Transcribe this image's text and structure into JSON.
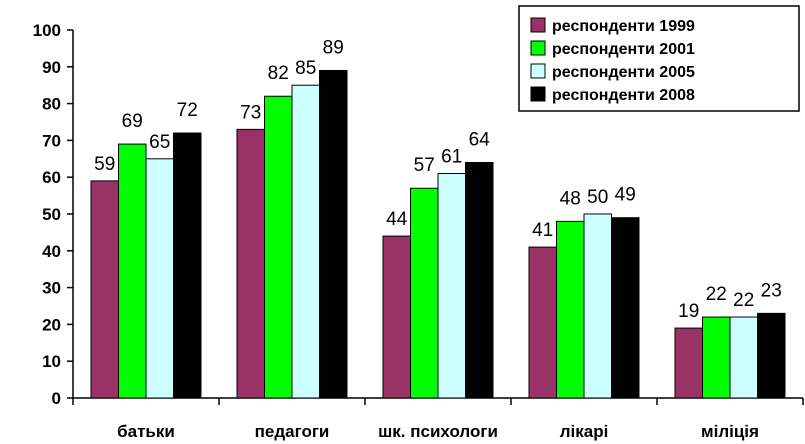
{
  "chart_data": {
    "type": "bar",
    "categories": [
      "батьки",
      "педагоги",
      "шк. психологи",
      "лікарі",
      "міліція"
    ],
    "series": [
      {
        "name": "респонденти 1999",
        "color": "#993366",
        "values": [
          59,
          73,
          44,
          41,
          19
        ]
      },
      {
        "name": "респонденти 2001",
        "color": "#00ff00",
        "values": [
          69,
          82,
          57,
          48,
          22
        ]
      },
      {
        "name": "респонденти 2005",
        "color": "#ccffff",
        "values": [
          65,
          85,
          61,
          50,
          22
        ]
      },
      {
        "name": "респонденти 2008",
        "color": "#000000",
        "values": [
          72,
          89,
          64,
          49,
          23
        ]
      }
    ],
    "ylim": [
      0,
      100
    ],
    "yticks": [
      0,
      10,
      20,
      30,
      40,
      50,
      60,
      70,
      80,
      90,
      100
    ],
    "grid": false,
    "legend": "top-right",
    "title": "",
    "xlabel": "",
    "ylabel": ""
  }
}
